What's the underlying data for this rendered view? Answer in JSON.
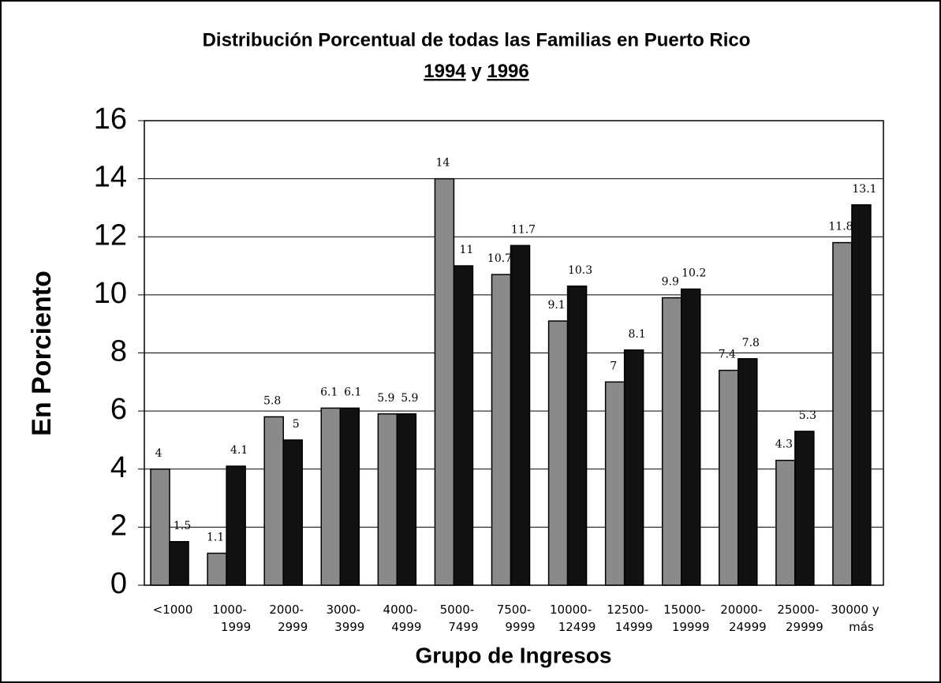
{
  "chart_data": {
    "type": "bar",
    "title": "Distribución Porcentual de todas las Familias en Puerto Rico",
    "subtitle_joiner": "y",
    "xlabel": "Grupo de Ingresos",
    "ylabel": "En Porciento",
    "categories": [
      "<1000",
      "1000-\n1999",
      "2000-\n2999",
      "3000-\n3999",
      "4000-\n4999",
      "5000-\n7499",
      "7500-\n9999",
      "10000-\n12499",
      "12500-\n14999",
      "15000-\n19999",
      "20000-\n24999",
      "25000-\n29999",
      "30000 y\nmás"
    ],
    "series": [
      {
        "name": "1994",
        "color": "#8a8a8a",
        "values": [
          4,
          1.1,
          5.8,
          6.1,
          5.9,
          14,
          10.7,
          9.1,
          7,
          9.9,
          7.4,
          4.3,
          11.8
        ]
      },
      {
        "name": "1996",
        "color": "#111111",
        "values": [
          1.5,
          4.1,
          5,
          6.1,
          5.9,
          11,
          11.7,
          10.3,
          8.1,
          10.2,
          7.8,
          5.3,
          13.1
        ]
      }
    ],
    "ylim": [
      0,
      16
    ],
    "yticks": [
      0,
      2,
      4,
      6,
      8,
      10,
      12,
      14,
      16
    ],
    "grid": true
  }
}
